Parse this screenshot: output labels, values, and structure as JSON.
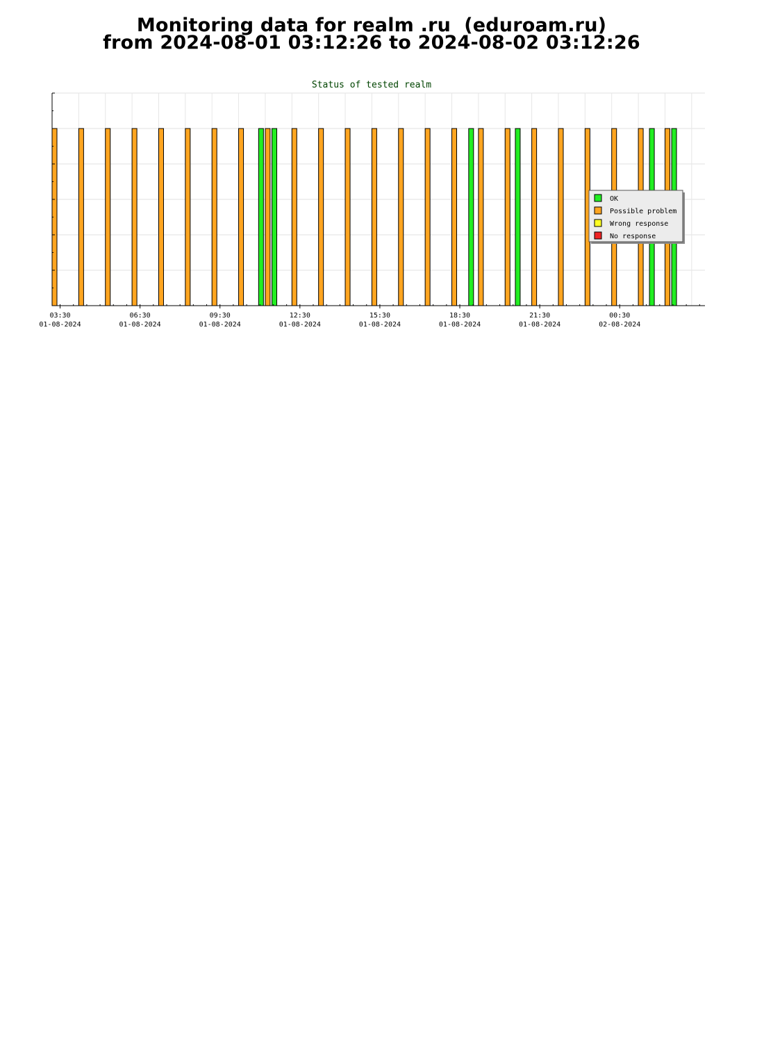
{
  "page": {
    "title_line1": "Monitoring data for realm .ru  (eduroam.ru)",
    "title_line2": "from 2024-08-01 03:12:26 to 2024-08-02 03:12:26"
  },
  "chart_data": {
    "type": "bar",
    "title": "Status of tested realm",
    "x_range": [
      "2024-08-01 03:12",
      "2024-08-02 03:42"
    ],
    "ylim": [
      0,
      6
    ],
    "grid": true,
    "legend_placement": "right",
    "x_ticks": [
      {
        "time": "2024-08-01 03:30",
        "label": "03:30",
        "date": "01-08-2024"
      },
      {
        "time": "2024-08-01 06:30",
        "label": "06:30",
        "date": "01-08-2024"
      },
      {
        "time": "2024-08-01 09:30",
        "label": "09:30",
        "date": "01-08-2024"
      },
      {
        "time": "2024-08-01 12:30",
        "label": "12:30",
        "date": "01-08-2024"
      },
      {
        "time": "2024-08-01 15:30",
        "label": "15:30",
        "date": "01-08-2024"
      },
      {
        "time": "2024-08-01 18:30",
        "label": "18:30",
        "date": "01-08-2024"
      },
      {
        "time": "2024-08-01 21:30",
        "label": "21:30",
        "date": "01-08-2024"
      },
      {
        "time": "2024-08-02 00:30",
        "label": "00:30",
        "date": "02-08-2024"
      }
    ],
    "series": [
      {
        "name": "OK",
        "color": "#22ee22"
      },
      {
        "name": "Possible problem",
        "color": "#ffa520"
      },
      {
        "name": "Wrong response",
        "color": "#ffff22"
      },
      {
        "name": "No response",
        "color": "#ee2222"
      }
    ],
    "points": [
      {
        "time": "2024-08-01 03:12",
        "status": "Possible problem",
        "value": 5
      },
      {
        "time": "2024-08-01 04:12",
        "status": "Possible problem",
        "value": 5
      },
      {
        "time": "2024-08-01 05:12",
        "status": "Possible problem",
        "value": 5
      },
      {
        "time": "2024-08-01 06:12",
        "status": "Possible problem",
        "value": 5
      },
      {
        "time": "2024-08-01 07:12",
        "status": "Possible problem",
        "value": 5
      },
      {
        "time": "2024-08-01 08:12",
        "status": "Possible problem",
        "value": 5
      },
      {
        "time": "2024-08-01 09:12",
        "status": "Possible problem",
        "value": 5
      },
      {
        "time": "2024-08-01 10:12",
        "status": "Possible problem",
        "value": 5
      },
      {
        "time": "2024-08-01 10:57",
        "status": "OK",
        "value": 5
      },
      {
        "time": "2024-08-01 11:12",
        "status": "Possible problem",
        "value": 5
      },
      {
        "time": "2024-08-01 11:27",
        "status": "OK",
        "value": 5
      },
      {
        "time": "2024-08-01 12:12",
        "status": "Possible problem",
        "value": 5
      },
      {
        "time": "2024-08-01 13:12",
        "status": "Possible problem",
        "value": 5
      },
      {
        "time": "2024-08-01 14:12",
        "status": "Possible problem",
        "value": 5
      },
      {
        "time": "2024-08-01 15:12",
        "status": "Possible problem",
        "value": 5
      },
      {
        "time": "2024-08-01 16:12",
        "status": "Possible problem",
        "value": 5
      },
      {
        "time": "2024-08-01 17:12",
        "status": "Possible problem",
        "value": 5
      },
      {
        "time": "2024-08-01 18:12",
        "status": "Possible problem",
        "value": 5
      },
      {
        "time": "2024-08-01 18:50",
        "status": "OK",
        "value": 5
      },
      {
        "time": "2024-08-01 19:12",
        "status": "Possible problem",
        "value": 5
      },
      {
        "time": "2024-08-01 20:12",
        "status": "Possible problem",
        "value": 5
      },
      {
        "time": "2024-08-01 20:35",
        "status": "OK",
        "value": 5
      },
      {
        "time": "2024-08-01 21:12",
        "status": "Possible problem",
        "value": 5
      },
      {
        "time": "2024-08-01 22:12",
        "status": "Possible problem",
        "value": 5
      },
      {
        "time": "2024-08-01 23:12",
        "status": "Possible problem",
        "value": 5
      },
      {
        "time": "2024-08-02 00:12",
        "status": "Possible problem",
        "value": 5
      },
      {
        "time": "2024-08-02 01:12",
        "status": "Possible problem",
        "value": 5
      },
      {
        "time": "2024-08-02 01:37",
        "status": "OK",
        "value": 5
      },
      {
        "time": "2024-08-02 02:12",
        "status": "Possible problem",
        "value": 5
      },
      {
        "time": "2024-08-02 02:27",
        "status": "OK",
        "value": 5
      }
    ]
  }
}
